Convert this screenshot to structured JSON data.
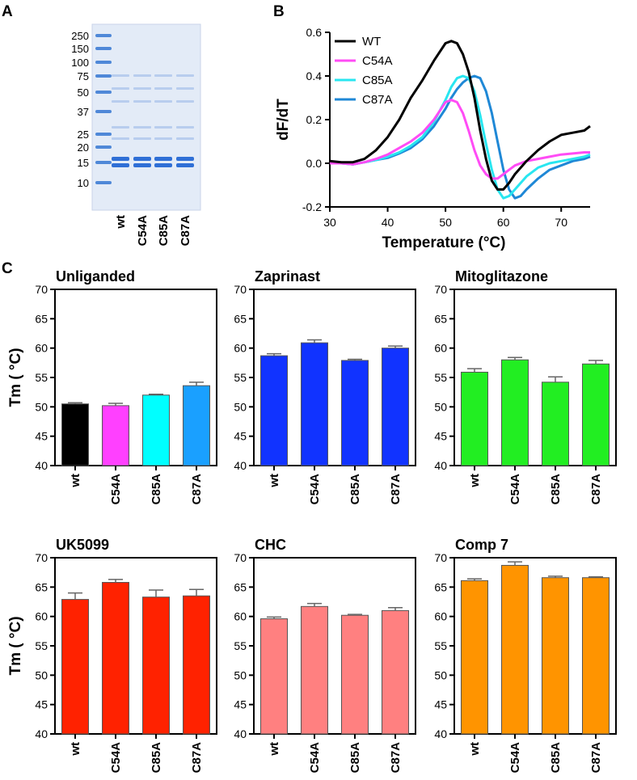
{
  "panel_labels": {
    "a": "A",
    "b": "B",
    "c": "C"
  },
  "gel": {
    "markers": [
      "250",
      "150",
      "100",
      "75",
      "50",
      "37",
      "25",
      "20",
      "15",
      "10"
    ],
    "lanes": [
      "wt",
      "C54A",
      "C85A",
      "C87A"
    ]
  },
  "chart_data": [
    {
      "type": "line",
      "id": "dfdt",
      "title": "",
      "xlabel": "Temperature (°C)",
      "ylabel": "dF/dT",
      "xlim": [
        30,
        75
      ],
      "ylim": [
        -0.2,
        0.6
      ],
      "xticks": [
        "30",
        "40",
        "50",
        "60",
        "70"
      ],
      "yticks": [
        "-0.2",
        "0.0",
        "0.2",
        "0.4",
        "0.6"
      ],
      "legend_position": "top-left",
      "series": [
        {
          "name": "WT",
          "color": "#000000",
          "x": [
            30,
            32,
            34,
            36,
            38,
            40,
            42,
            44,
            46,
            48,
            50,
            51,
            52,
            53,
            54,
            55,
            56,
            57,
            58,
            59,
            60,
            61,
            62,
            64,
            66,
            68,
            70,
            72,
            74,
            75
          ],
          "y": [
            0.01,
            0.005,
            0.005,
            0.02,
            0.06,
            0.12,
            0.2,
            0.3,
            0.38,
            0.47,
            0.55,
            0.56,
            0.55,
            0.5,
            0.42,
            0.3,
            0.15,
            0.02,
            -0.08,
            -0.12,
            -0.12,
            -0.09,
            -0.05,
            0.01,
            0.06,
            0.1,
            0.13,
            0.14,
            0.15,
            0.17
          ]
        },
        {
          "name": "C54A",
          "color": "#ff4cf5",
          "x": [
            30,
            32,
            34,
            36,
            38,
            40,
            42,
            44,
            46,
            48,
            49,
            50,
            51,
            52,
            53,
            54,
            55,
            56,
            57,
            58,
            59,
            60,
            61,
            62,
            64,
            66,
            68,
            70,
            72,
            74,
            75
          ],
          "y": [
            0.0,
            0.0,
            -0.005,
            0.005,
            0.02,
            0.04,
            0.07,
            0.1,
            0.14,
            0.2,
            0.24,
            0.28,
            0.29,
            0.28,
            0.23,
            0.15,
            0.06,
            -0.01,
            -0.05,
            -0.07,
            -0.07,
            -0.05,
            -0.03,
            -0.01,
            0.01,
            0.02,
            0.03,
            0.04,
            0.045,
            0.05,
            0.05
          ]
        },
        {
          "name": "C85A",
          "color": "#28e6f0",
          "x": [
            30,
            32,
            34,
            36,
            38,
            40,
            42,
            44,
            46,
            48,
            50,
            51,
            52,
            53,
            54,
            55,
            56,
            57,
            58,
            59,
            60,
            61,
            62,
            64,
            66,
            68,
            70,
            72,
            74,
            75
          ],
          "y": [
            0.0,
            0.0,
            -0.005,
            0.005,
            0.015,
            0.03,
            0.05,
            0.08,
            0.12,
            0.19,
            0.29,
            0.35,
            0.39,
            0.4,
            0.39,
            0.33,
            0.22,
            0.09,
            -0.03,
            -0.12,
            -0.16,
            -0.15,
            -0.12,
            -0.06,
            -0.02,
            0.0,
            0.01,
            0.02,
            0.03,
            0.04
          ]
        },
        {
          "name": "C87A",
          "color": "#1f88d6",
          "x": [
            30,
            32,
            34,
            36,
            38,
            40,
            42,
            44,
            46,
            48,
            50,
            51,
            52,
            53,
            54,
            55,
            56,
            57,
            58,
            59,
            60,
            61,
            62,
            63,
            64,
            66,
            68,
            70,
            72,
            74,
            75
          ],
          "y": [
            0.0,
            0.0,
            -0.005,
            0.005,
            0.015,
            0.025,
            0.045,
            0.07,
            0.11,
            0.17,
            0.25,
            0.3,
            0.34,
            0.37,
            0.39,
            0.4,
            0.39,
            0.33,
            0.23,
            0.1,
            -0.03,
            -0.12,
            -0.16,
            -0.15,
            -0.12,
            -0.07,
            -0.03,
            -0.01,
            0.01,
            0.02,
            0.03
          ]
        }
      ]
    },
    {
      "type": "bar",
      "id": "unliganded",
      "title": "Unliganded",
      "ylabel": "Tm ( °C)",
      "ylim": [
        40,
        70
      ],
      "yticks": [
        "40",
        "45",
        "50",
        "55",
        "60",
        "65",
        "70"
      ],
      "categories": [
        "wt",
        "C54A",
        "C85A",
        "C87A"
      ],
      "values": [
        50.5,
        50.2,
        52.0,
        53.6
      ],
      "errors": [
        0.2,
        0.4,
        0.15,
        0.6
      ],
      "colors": [
        "#000000",
        "#ff40ff",
        "#00ffff",
        "#1aa0ff"
      ]
    },
    {
      "type": "bar",
      "id": "zaprinast",
      "title": "Zaprinast",
      "ylabel": "",
      "ylim": [
        40,
        70
      ],
      "yticks": [
        "40",
        "45",
        "50",
        "55",
        "60",
        "65",
        "70"
      ],
      "categories": [
        "wt",
        "C54A",
        "C85A",
        "C87A"
      ],
      "values": [
        58.7,
        60.9,
        57.9,
        60.0
      ],
      "errors": [
        0.35,
        0.5,
        0.2,
        0.35
      ],
      "colors": [
        "#1133ff",
        "#1133ff",
        "#1133ff",
        "#1133ff"
      ]
    },
    {
      "type": "bar",
      "id": "mitoglitazone",
      "title": "Mitoglitazone",
      "ylabel": "",
      "ylim": [
        40,
        70
      ],
      "yticks": [
        "40",
        "45",
        "50",
        "55",
        "60",
        "65",
        "70"
      ],
      "categories": [
        "wt",
        "C54A",
        "C85A",
        "C87A"
      ],
      "values": [
        55.9,
        58.0,
        54.2,
        57.3
      ],
      "errors": [
        0.6,
        0.4,
        0.9,
        0.6
      ],
      "colors": [
        "#22ee22",
        "#22ee22",
        "#22ee22",
        "#22ee22"
      ]
    },
    {
      "type": "bar",
      "id": "uk5099",
      "title": "UK5099",
      "ylabel": "Tm ( °C)",
      "ylim": [
        40,
        70
      ],
      "yticks": [
        "40",
        "45",
        "50",
        "55",
        "60",
        "65",
        "70"
      ],
      "categories": [
        "wt",
        "C54A",
        "C85A",
        "C87A"
      ],
      "values": [
        62.9,
        65.8,
        63.3,
        63.5
      ],
      "errors": [
        1.1,
        0.5,
        1.2,
        1.1
      ],
      "colors": [
        "#ff2200",
        "#ff2200",
        "#ff2200",
        "#ff2200"
      ]
    },
    {
      "type": "bar",
      "id": "chc",
      "title": "CHC",
      "ylabel": "",
      "ylim": [
        40,
        70
      ],
      "yticks": [
        "40",
        "45",
        "50",
        "55",
        "60",
        "65",
        "70"
      ],
      "categories": [
        "wt",
        "C54A",
        "C85A",
        "C87A"
      ],
      "values": [
        59.6,
        61.7,
        60.2,
        61.0
      ],
      "errors": [
        0.3,
        0.5,
        0.15,
        0.5
      ],
      "colors": [
        "#ff8080",
        "#ff8080",
        "#ff8080",
        "#ff8080"
      ]
    },
    {
      "type": "bar",
      "id": "comp7",
      "title": "Comp 7",
      "ylabel": "",
      "ylim": [
        40,
        70
      ],
      "yticks": [
        "40",
        "45",
        "50",
        "55",
        "60",
        "65",
        "70"
      ],
      "categories": [
        "wt",
        "C54A",
        "C85A",
        "C87A"
      ],
      "values": [
        66.1,
        68.7,
        66.6,
        66.6
      ],
      "errors": [
        0.3,
        0.6,
        0.25,
        0.15
      ],
      "colors": [
        "#ff9400",
        "#ff9400",
        "#ff9400",
        "#ff9400"
      ]
    }
  ]
}
